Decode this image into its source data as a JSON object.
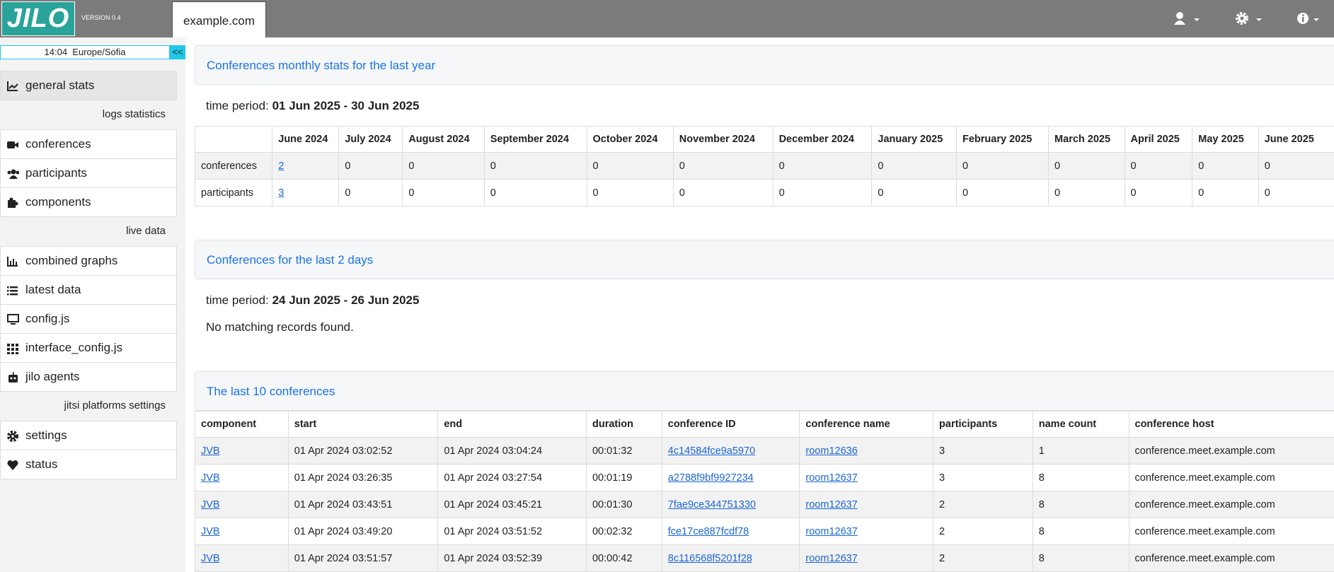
{
  "header": {
    "logo": "JILO",
    "version": "VERSION 0.4",
    "tab": "example.com"
  },
  "sidebar": {
    "clock": "14:04  Europe/Sofia",
    "collapse": "<<",
    "items": [
      {
        "label": "general stats",
        "icon": "chart",
        "active": true
      },
      {
        "heading": "logs statistics"
      },
      {
        "label": "conferences",
        "icon": "video"
      },
      {
        "label": "participants",
        "icon": "users"
      },
      {
        "label": "components",
        "icon": "puzzle"
      },
      {
        "heading": "live data"
      },
      {
        "label": "combined graphs",
        "icon": "bars"
      },
      {
        "label": "latest data",
        "icon": "list"
      },
      {
        "label": "config.js",
        "icon": "monitor"
      },
      {
        "label": "interface_config.js",
        "icon": "grid"
      },
      {
        "label": "jilo agents",
        "icon": "robot"
      },
      {
        "heading": "jitsi platforms settings"
      },
      {
        "label": "settings",
        "icon": "gear"
      },
      {
        "label": "status",
        "icon": "heart"
      }
    ]
  },
  "monthly": {
    "title": "Conferences monthly stats for the last year",
    "period_label": "time period:",
    "period": "01 Jun 2025 - 30 Jun 2025",
    "columns": [
      "June 2024",
      "July 2024",
      "August 2024",
      "September 2024",
      "October 2024",
      "November 2024",
      "December 2024",
      "January 2025",
      "February 2025",
      "March 2025",
      "April 2025",
      "May 2025",
      "June 2025"
    ],
    "rows": [
      {
        "label": "conferences",
        "values": [
          2,
          0,
          0,
          0,
          0,
          0,
          0,
          0,
          0,
          0,
          0,
          0,
          0
        ]
      },
      {
        "label": "participants",
        "values": [
          3,
          0,
          0,
          0,
          0,
          0,
          0,
          0,
          0,
          0,
          0,
          0,
          0
        ]
      }
    ]
  },
  "recent": {
    "title": "Conferences for the last 2 days",
    "period_label": "time period:",
    "period": "24 Jun 2025 - 26 Jun 2025",
    "message": "No matching records found."
  },
  "last10": {
    "title": "The last 10 conferences",
    "columns": [
      "component",
      "start",
      "end",
      "duration",
      "conference ID",
      "conference name",
      "participants",
      "name count",
      "conference host"
    ],
    "rows": [
      [
        "JVB",
        "01 Apr 2024 03:02:52",
        "01 Apr 2024 03:04:24",
        "00:01:32",
        "4c14584fce9a5970",
        "room12636",
        3,
        1,
        "conference.meet.example.com"
      ],
      [
        "JVB",
        "01 Apr 2024 03:26:35",
        "01 Apr 2024 03:27:54",
        "00:01:19",
        "a2788f9bf9927234",
        "room12637",
        3,
        8,
        "conference.meet.example.com"
      ],
      [
        "JVB",
        "01 Apr 2024 03:43:51",
        "01 Apr 2024 03:45:21",
        "00:01:30",
        "7fae9ce344751330",
        "room12637",
        2,
        8,
        "conference.meet.example.com"
      ],
      [
        "JVB",
        "01 Apr 2024 03:49:20",
        "01 Apr 2024 03:51:52",
        "00:02:32",
        "fce17ce887fcdf78",
        "room12637",
        2,
        8,
        "conference.meet.example.com"
      ],
      [
        "JVB",
        "01 Apr 2024 03:51:57",
        "01 Apr 2024 03:52:39",
        "00:00:42",
        "8c116568f5201f28",
        "room12637",
        2,
        8,
        "conference.meet.example.com"
      ]
    ]
  }
}
